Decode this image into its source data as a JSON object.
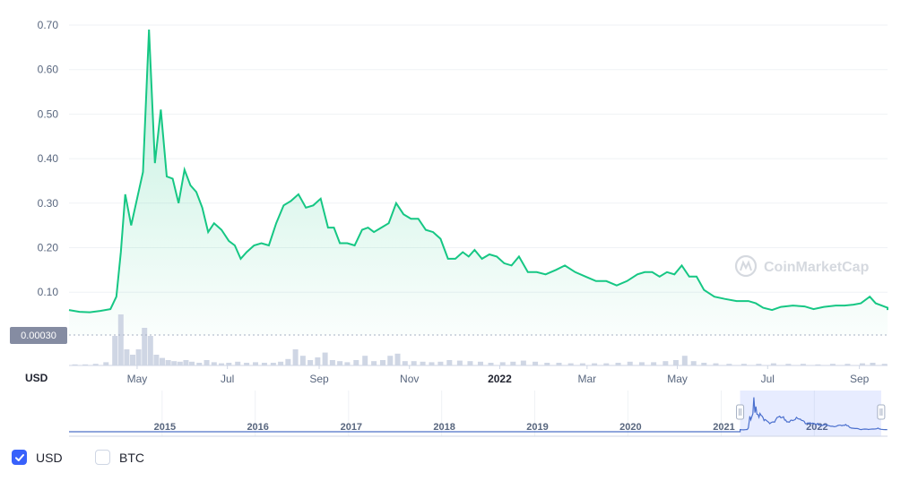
{
  "chart_data": {
    "type": "area",
    "y_ticks": [
      "0.70",
      "0.60",
      "0.50",
      "0.40",
      "0.30",
      "0.20",
      "0.10"
    ],
    "y_tick_values": [
      0.7,
      0.6,
      0.5,
      0.4,
      0.3,
      0.2,
      0.1
    ],
    "ylim": [
      0.0,
      0.72
    ],
    "y_axis_unit": "USD",
    "x_ticks": [
      "May",
      "Jul",
      "Sep",
      "Nov",
      "2022",
      "Mar",
      "May",
      "Jul",
      "Sep"
    ],
    "x_tick_dates": [
      "2021-05-01",
      "2021-07-01",
      "2021-09-01",
      "2021-11-01",
      "2022-01-01",
      "2022-03-01",
      "2022-05-01",
      "2022-07-01",
      "2022-09-01"
    ],
    "x_range": [
      "2021-03-16",
      "2022-09-20"
    ],
    "price_marker": "0.00030",
    "watermark": "CoinMarketCap",
    "line_color": "#16c784",
    "series": [
      {
        "points": [
          [
            "2021-03-16",
            0.06
          ],
          [
            "2021-03-23",
            0.056
          ],
          [
            "2021-03-30",
            0.055
          ],
          [
            "2021-04-06",
            0.058
          ],
          [
            "2021-04-13",
            0.062
          ],
          [
            "2021-04-17",
            0.09
          ],
          [
            "2021-04-20",
            0.19
          ],
          [
            "2021-04-23",
            0.32
          ],
          [
            "2021-04-27",
            0.25
          ],
          [
            "2021-05-01",
            0.31
          ],
          [
            "2021-05-05",
            0.37
          ],
          [
            "2021-05-09",
            0.69
          ],
          [
            "2021-05-13",
            0.39
          ],
          [
            "2021-05-17",
            0.51
          ],
          [
            "2021-05-21",
            0.36
          ],
          [
            "2021-05-25",
            0.355
          ],
          [
            "2021-05-29",
            0.3
          ],
          [
            "2021-06-02",
            0.375
          ],
          [
            "2021-06-06",
            0.34
          ],
          [
            "2021-06-10",
            0.325
          ],
          [
            "2021-06-14",
            0.29
          ],
          [
            "2021-06-18",
            0.235
          ],
          [
            "2021-06-22",
            0.255
          ],
          [
            "2021-06-27",
            0.24
          ],
          [
            "2021-07-02",
            0.215
          ],
          [
            "2021-07-06",
            0.205
          ],
          [
            "2021-07-10",
            0.175
          ],
          [
            "2021-07-14",
            0.19
          ],
          [
            "2021-07-19",
            0.205
          ],
          [
            "2021-07-24",
            0.21
          ],
          [
            "2021-07-29",
            0.205
          ],
          [
            "2021-08-03",
            0.255
          ],
          [
            "2021-08-08",
            0.295
          ],
          [
            "2021-08-13",
            0.305
          ],
          [
            "2021-08-18",
            0.32
          ],
          [
            "2021-08-23",
            0.29
          ],
          [
            "2021-08-28",
            0.295
          ],
          [
            "2021-09-02",
            0.31
          ],
          [
            "2021-09-07",
            0.245
          ],
          [
            "2021-09-11",
            0.245
          ],
          [
            "2021-09-15",
            0.21
          ],
          [
            "2021-09-20",
            0.21
          ],
          [
            "2021-09-25",
            0.205
          ],
          [
            "2021-09-30",
            0.24
          ],
          [
            "2021-10-04",
            0.245
          ],
          [
            "2021-10-08",
            0.235
          ],
          [
            "2021-10-13",
            0.245
          ],
          [
            "2021-10-18",
            0.255
          ],
          [
            "2021-10-23",
            0.3
          ],
          [
            "2021-10-28",
            0.275
          ],
          [
            "2021-11-02",
            0.265
          ],
          [
            "2021-11-07",
            0.265
          ],
          [
            "2021-11-12",
            0.24
          ],
          [
            "2021-11-17",
            0.235
          ],
          [
            "2021-11-22",
            0.22
          ],
          [
            "2021-11-27",
            0.175
          ],
          [
            "2021-12-02",
            0.175
          ],
          [
            "2021-12-07",
            0.19
          ],
          [
            "2021-12-11",
            0.18
          ],
          [
            "2021-12-15",
            0.195
          ],
          [
            "2021-12-20",
            0.175
          ],
          [
            "2021-12-25",
            0.185
          ],
          [
            "2021-12-30",
            0.18
          ],
          [
            "2022-01-04",
            0.165
          ],
          [
            "2022-01-09",
            0.16
          ],
          [
            "2022-01-14",
            0.18
          ],
          [
            "2022-01-20",
            0.145
          ],
          [
            "2022-01-26",
            0.145
          ],
          [
            "2022-02-01",
            0.14
          ],
          [
            "2022-02-08",
            0.15
          ],
          [
            "2022-02-14",
            0.16
          ],
          [
            "2022-02-21",
            0.145
          ],
          [
            "2022-02-28",
            0.135
          ],
          [
            "2022-03-07",
            0.125
          ],
          [
            "2022-03-14",
            0.125
          ],
          [
            "2022-03-21",
            0.115
          ],
          [
            "2022-03-28",
            0.125
          ],
          [
            "2022-04-04",
            0.14
          ],
          [
            "2022-04-09",
            0.145
          ],
          [
            "2022-04-14",
            0.145
          ],
          [
            "2022-04-19",
            0.135
          ],
          [
            "2022-04-24",
            0.145
          ],
          [
            "2022-04-29",
            0.14
          ],
          [
            "2022-05-04",
            0.16
          ],
          [
            "2022-05-09",
            0.135
          ],
          [
            "2022-05-14",
            0.135
          ],
          [
            "2022-05-19",
            0.105
          ],
          [
            "2022-05-26",
            0.09
          ],
          [
            "2022-06-02",
            0.085
          ],
          [
            "2022-06-10",
            0.08
          ],
          [
            "2022-06-18",
            0.08
          ],
          [
            "2022-06-23",
            0.075
          ],
          [
            "2022-06-28",
            0.065
          ],
          [
            "2022-07-04",
            0.06
          ],
          [
            "2022-07-10",
            0.067
          ],
          [
            "2022-07-18",
            0.07
          ],
          [
            "2022-07-26",
            0.068
          ],
          [
            "2022-08-01",
            0.062
          ],
          [
            "2022-08-08",
            0.067
          ],
          [
            "2022-08-16",
            0.07
          ],
          [
            "2022-08-22",
            0.07
          ],
          [
            "2022-08-28",
            0.072
          ],
          [
            "2022-09-02",
            0.075
          ],
          [
            "2022-09-08",
            0.09
          ],
          [
            "2022-09-12",
            0.075
          ],
          [
            "2022-09-16",
            0.07
          ],
          [
            "2022-09-20",
            0.065
          ],
          [
            "2022-09-28",
            0.062
          ],
          [
            "2022-10-06",
            0.06
          ],
          [
            "2022-10-14",
            0.06
          ]
        ]
      }
    ],
    "volume_bars": [
      [
        "2021-03-20",
        0.02
      ],
      [
        "2021-03-27",
        0.02
      ],
      [
        "2021-04-03",
        0.03
      ],
      [
        "2021-04-10",
        0.06
      ],
      [
        "2021-04-16",
        0.55
      ],
      [
        "2021-04-20",
        0.95
      ],
      [
        "2021-04-24",
        0.3
      ],
      [
        "2021-04-28",
        0.2
      ],
      [
        "2021-05-02",
        0.3
      ],
      [
        "2021-05-06",
        0.7
      ],
      [
        "2021-05-10",
        0.55
      ],
      [
        "2021-05-14",
        0.2
      ],
      [
        "2021-05-18",
        0.14
      ],
      [
        "2021-05-22",
        0.1
      ],
      [
        "2021-05-26",
        0.08
      ],
      [
        "2021-05-30",
        0.07
      ],
      [
        "2021-06-03",
        0.1
      ],
      [
        "2021-06-07",
        0.07
      ],
      [
        "2021-06-12",
        0.05
      ],
      [
        "2021-06-17",
        0.1
      ],
      [
        "2021-06-22",
        0.06
      ],
      [
        "2021-06-27",
        0.04
      ],
      [
        "2021-07-02",
        0.05
      ],
      [
        "2021-07-08",
        0.07
      ],
      [
        "2021-07-14",
        0.05
      ],
      [
        "2021-07-20",
        0.06
      ],
      [
        "2021-07-26",
        0.05
      ],
      [
        "2021-08-01",
        0.05
      ],
      [
        "2021-08-06",
        0.07
      ],
      [
        "2021-08-11",
        0.12
      ],
      [
        "2021-08-16",
        0.3
      ],
      [
        "2021-08-21",
        0.18
      ],
      [
        "2021-08-26",
        0.1
      ],
      [
        "2021-08-31",
        0.15
      ],
      [
        "2021-09-05",
        0.24
      ],
      [
        "2021-09-10",
        0.1
      ],
      [
        "2021-09-15",
        0.08
      ],
      [
        "2021-09-20",
        0.06
      ],
      [
        "2021-09-26",
        0.1
      ],
      [
        "2021-10-02",
        0.18
      ],
      [
        "2021-10-08",
        0.08
      ],
      [
        "2021-10-14",
        0.1
      ],
      [
        "2021-10-19",
        0.18
      ],
      [
        "2021-10-24",
        0.22
      ],
      [
        "2021-10-29",
        0.08
      ],
      [
        "2021-11-04",
        0.08
      ],
      [
        "2021-11-10",
        0.07
      ],
      [
        "2021-11-16",
        0.06
      ],
      [
        "2021-11-22",
        0.07
      ],
      [
        "2021-11-28",
        0.1
      ],
      [
        "2021-12-05",
        0.09
      ],
      [
        "2021-12-12",
        0.08
      ],
      [
        "2021-12-19",
        0.07
      ],
      [
        "2021-12-26",
        0.05
      ],
      [
        "2022-01-03",
        0.06
      ],
      [
        "2022-01-10",
        0.07
      ],
      [
        "2022-01-17",
        0.09
      ],
      [
        "2022-01-25",
        0.07
      ],
      [
        "2022-02-02",
        0.05
      ],
      [
        "2022-02-10",
        0.05
      ],
      [
        "2022-02-18",
        0.04
      ],
      [
        "2022-02-26",
        0.04
      ],
      [
        "2022-03-06",
        0.04
      ],
      [
        "2022-03-14",
        0.04
      ],
      [
        "2022-03-22",
        0.05
      ],
      [
        "2022-03-30",
        0.07
      ],
      [
        "2022-04-07",
        0.06
      ],
      [
        "2022-04-15",
        0.06
      ],
      [
        "2022-04-23",
        0.08
      ],
      [
        "2022-04-30",
        0.1
      ],
      [
        "2022-05-06",
        0.18
      ],
      [
        "2022-05-12",
        0.08
      ],
      [
        "2022-05-19",
        0.05
      ],
      [
        "2022-05-27",
        0.04
      ],
      [
        "2022-06-05",
        0.03
      ],
      [
        "2022-06-15",
        0.03
      ],
      [
        "2022-06-25",
        0.03
      ],
      [
        "2022-07-05",
        0.04
      ],
      [
        "2022-07-15",
        0.03
      ],
      [
        "2022-07-25",
        0.03
      ],
      [
        "2022-08-04",
        0.02
      ],
      [
        "2022-08-14",
        0.03
      ],
      [
        "2022-08-24",
        0.03
      ],
      [
        "2022-09-03",
        0.04
      ],
      [
        "2022-09-10",
        0.05
      ],
      [
        "2022-09-18",
        0.03
      ]
    ],
    "navigator": {
      "year_labels": [
        "2015",
        "2016",
        "2017",
        "2018",
        "2019",
        "2020",
        "2021",
        "2022"
      ],
      "year_dates": [
        "2015-01-01",
        "2016-01-01",
        "2017-01-01",
        "2018-01-01",
        "2019-01-01",
        "2020-01-01",
        "2021-01-01",
        "2022-01-01"
      ],
      "range": [
        "2014-01-01",
        "2022-10-15"
      ],
      "selection": [
        "2021-03-16",
        "2022-09-20"
      ],
      "line_color": "#4e72c8"
    },
    "currency_toggles": [
      {
        "label": "USD",
        "checked": true
      },
      {
        "label": "BTC",
        "checked": false
      }
    ]
  }
}
